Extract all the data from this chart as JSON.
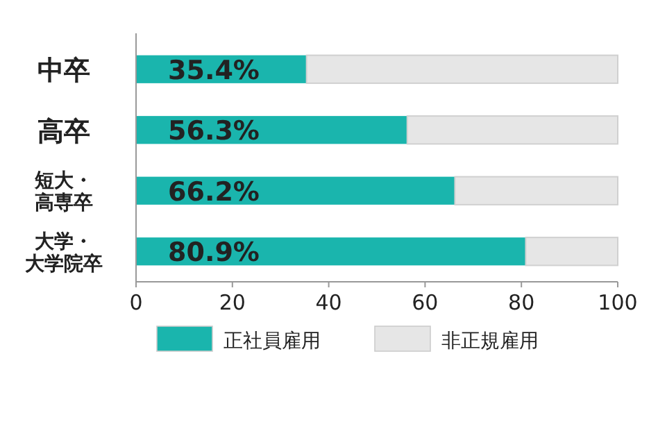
{
  "chart_data": {
    "type": "bar",
    "orientation": "horizontal",
    "stacked": true,
    "categories": [
      "中卒",
      "高卒",
      "短大・高専卒",
      "大学・大学院卒"
    ],
    "series": [
      {
        "name": "正社員雇用",
        "color": "#1ab5ad",
        "values": [
          35.4,
          56.3,
          66.2,
          80.9
        ],
        "value_labels": [
          "35.4%",
          "56.3%",
          "66.2%",
          "80.9%"
        ]
      },
      {
        "name": "非正規雇用",
        "color": "#e6e6e6",
        "values": [
          64.6,
          43.7,
          33.8,
          19.1
        ]
      }
    ],
    "xlim": [
      0,
      100
    ],
    "xticks": [
      0,
      20,
      40,
      60,
      80,
      100
    ],
    "grid": false,
    "legend": "bottom"
  }
}
